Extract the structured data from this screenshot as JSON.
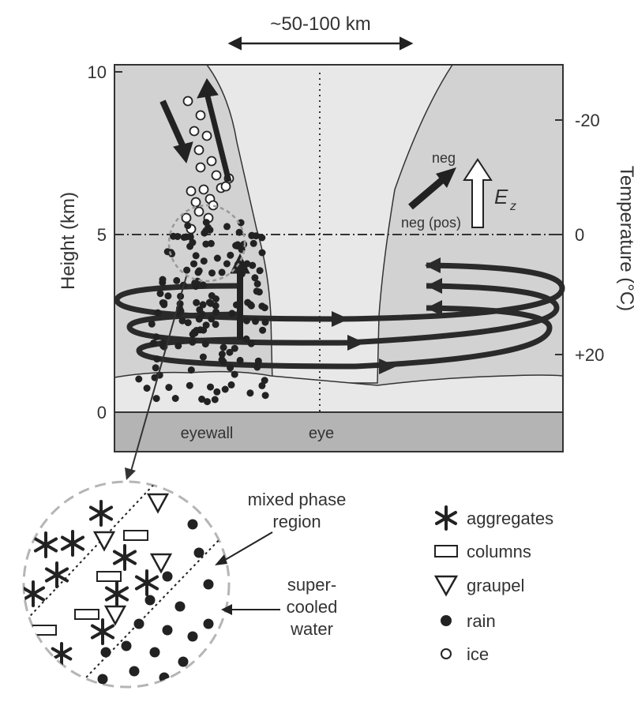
{
  "span_label": "~50-100 km",
  "y_axis": {
    "label": "Height (km)",
    "ticks": [
      {
        "value": 0,
        "label": "0"
      },
      {
        "value": 5,
        "label": "5"
      },
      {
        "value": 10,
        "label": "10"
      }
    ]
  },
  "y2_axis": {
    "label": "Temperature (°C)",
    "ticks": [
      {
        "value": -20,
        "label": "-20"
      },
      {
        "value": 0,
        "label": "0"
      },
      {
        "value": 20,
        "label": "+20"
      }
    ]
  },
  "regions": {
    "eyewall": "eyewall",
    "eye": "eye"
  },
  "field_labels": {
    "neg_top": "neg",
    "neg_pos": "neg (pos)",
    "ez_main": "E",
    "ez_sub": "z"
  },
  "inset_labels": {
    "mixed_phase": [
      "mixed phase",
      "region"
    ],
    "supercooled": [
      "super-",
      "cooled",
      "water"
    ]
  },
  "legend": [
    {
      "symbol": "asterisk",
      "label": "aggregates"
    },
    {
      "symbol": "rectangle",
      "label": "columns"
    },
    {
      "symbol": "triangle",
      "label": "graupel"
    },
    {
      "symbol": "filled-circle",
      "label": "rain"
    },
    {
      "symbol": "open-circle",
      "label": "ice"
    }
  ],
  "colors": {
    "cloud_gray": "#d2d2d2",
    "eye_gray": "#e8e8e8",
    "ground_gray": "#b4b4b4",
    "ink": "#222222"
  }
}
